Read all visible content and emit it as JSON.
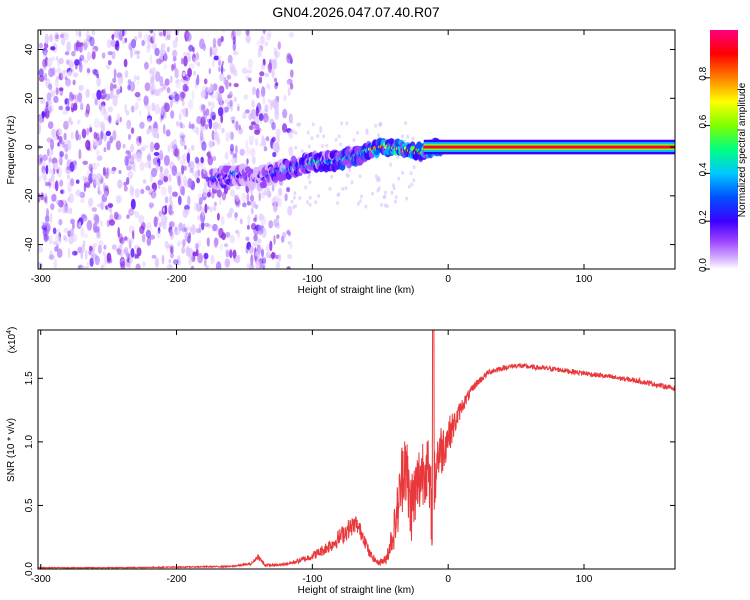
{
  "title": "GN04.2026.047.07.40.R07",
  "chart_data": [
    {
      "type": "heatmap",
      "xlabel": "Height of straight line (km)",
      "ylabel": "Frequency (Hz)",
      "xlim": [
        -302,
        167
      ],
      "ylim": [
        -50,
        48
      ],
      "xticks": [
        -300,
        -200,
        -100,
        0,
        100
      ],
      "xtick_labels": [
        "-300",
        "-200",
        "-100",
        "0",
        "100"
      ],
      "yticks": [
        -40,
        -20,
        0,
        20,
        40
      ],
      "ytick_labels": [
        "-40",
        "-20",
        "0",
        "20",
        "40"
      ],
      "colorbar": {
        "label": "Normalized spectral amplitude",
        "range": [
          0,
          1
        ],
        "ticks": [
          0.0,
          0.2,
          0.4,
          0.6,
          0.8
        ],
        "tick_labels": [
          "0.0",
          "0.2",
          "0.4",
          "0.6",
          "0.8"
        ],
        "colormap": [
          "#ffffff",
          "#c9a8f5",
          "#8a2be2",
          "#3a00ff",
          "#0050ff",
          "#00c8ff",
          "#00ff80",
          "#7fff00",
          "#ffff00",
          "#ff8000",
          "#ff0000",
          "#ff0080"
        ]
      },
      "ridge": {
        "x": [
          -175,
          -160,
          -150,
          -140,
          -130,
          -120,
          -110,
          -100,
          -90,
          -80,
          -70,
          -60,
          -50,
          -40,
          -30,
          -20,
          -10,
          0,
          50,
          100,
          167
        ],
        "y": [
          -14,
          -11,
          -12,
          -13,
          -11,
          -9,
          -8,
          -6,
          -6,
          -5,
          -4,
          -2,
          0,
          0,
          -1,
          -2,
          0,
          0,
          0,
          0,
          0
        ],
        "strength": [
          0.35,
          0.45,
          0.3,
          0.25,
          0.4,
          0.45,
          0.5,
          0.55,
          0.5,
          0.55,
          0.6,
          0.7,
          0.8,
          0.85,
          0.9,
          0.8,
          0.9,
          1.0,
          1.0,
          1.0,
          1.0
        ]
      },
      "noise_region": {
        "x_from": -302,
        "x_to": -115,
        "gaps": [
          [
            -125,
            -118
          ],
          [
            -154,
            -148
          ]
        ]
      }
    },
    {
      "type": "line",
      "xlabel": "Height of straight line (km)",
      "ylabel": "SNR (10 * v/v)",
      "yscale_label": "(x10",
      "yscale_exp": "4",
      "ylabel_full": "SNR (10 * v/v)",
      "xlim": [
        -302,
        167
      ],
      "ylim": [
        0,
        1.88
      ],
      "xticks": [
        -300,
        -200,
        -100,
        0,
        100
      ],
      "xtick_labels": [
        "-300",
        "-200",
        "-100",
        "0",
        "100"
      ],
      "yticks": [
        0.0,
        0.5,
        1.0,
        1.5
      ],
      "ytick_labels": [
        "0.0",
        "0.5",
        "1.0",
        "1.5"
      ],
      "color": "#e8383b",
      "series": [
        {
          "x": [
            -302,
            -250,
            -200,
            -160,
            -145,
            -140,
            -135,
            -125,
            -115,
            -105,
            -95,
            -85,
            -75,
            -68,
            -62,
            -58,
            -52,
            -46,
            -40,
            -36,
            -32,
            -28,
            -24,
            -20,
            -16,
            -12,
            -8,
            -4,
            0,
            5,
            10,
            20,
            30,
            40,
            50,
            60,
            80,
            100,
            120,
            140,
            167
          ],
          "y": [
            0.01,
            0.01,
            0.015,
            0.02,
            0.04,
            0.1,
            0.03,
            0.03,
            0.05,
            0.08,
            0.13,
            0.2,
            0.3,
            0.36,
            0.25,
            0.12,
            0.05,
            0.07,
            0.3,
            0.55,
            0.9,
            0.48,
            0.6,
            0.75,
            0.85,
            0.45,
            0.9,
            0.95,
            1.05,
            1.15,
            1.28,
            1.45,
            1.55,
            1.58,
            1.6,
            1.59,
            1.57,
            1.54,
            1.51,
            1.48,
            1.42
          ],
          "noise": [
            0.003,
            0.003,
            0.004,
            0.005,
            0.01,
            0.02,
            0.01,
            0.01,
            0.015,
            0.025,
            0.04,
            0.06,
            0.08,
            0.07,
            0.06,
            0.04,
            0.02,
            0.04,
            0.15,
            0.25,
            0.35,
            0.3,
            0.3,
            0.3,
            0.3,
            0.3,
            0.25,
            0.2,
            0.15,
            0.1,
            0.06,
            0.03,
            0.025,
            0.02,
            0.02,
            0.02,
            0.02,
            0.02,
            0.02,
            0.02,
            0.02
          ]
        }
      ],
      "annotations": [
        {
          "x": -11,
          "y": 1.88,
          "note": "spike"
        }
      ]
    }
  ]
}
